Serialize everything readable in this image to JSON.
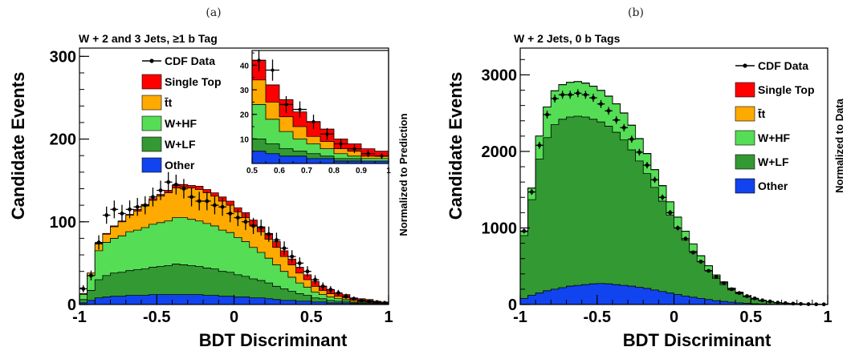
{
  "panels": {
    "a": {
      "letter": "(a)",
      "title": "W + 2 and 3 Jets, ≥1 b Tag",
      "side_label": "Normalized to Prediction"
    },
    "b": {
      "letter": "(b)",
      "title": "W + 2 Jets, 0 b Tags",
      "side_label": "Normalized to Data"
    }
  },
  "colors": {
    "single_top": "#ff0000",
    "ttbar": "#ffaa00",
    "whf": "#55dd55",
    "wlf": "#339933",
    "other": "#1144ee",
    "data": "#000000"
  },
  "chart_data": [
    {
      "type": "area",
      "title": "W + 2 and 3 Jets, ≥1 b Tag",
      "xlabel": "BDT Discriminant",
      "ylabel": "Candidate Events",
      "side_label": "Normalized to Prediction",
      "xlim": [
        -1,
        1
      ],
      "ylim": [
        0,
        310
      ],
      "x_ticks": [
        "-1",
        "-0.5",
        "0",
        "0.5",
        "1"
      ],
      "y_ticks": [
        "0",
        "100",
        "200",
        "300"
      ],
      "bins": 40,
      "stacked": true,
      "legend": [
        "CDF Data",
        "Single Top",
        "t̄t",
        "W+HF",
        "W+LF",
        "Other"
      ],
      "legend_position": "top",
      "series": [
        {
          "name": "Other",
          "values": [
            2,
            5,
            8,
            9,
            10,
            10,
            11,
            11,
            11,
            12,
            12,
            12,
            12,
            12,
            12,
            12,
            11,
            11,
            10,
            10,
            9,
            9,
            8,
            8,
            7,
            6,
            5,
            5,
            4,
            4,
            3,
            3,
            2,
            2,
            2,
            1,
            1,
            1,
            1,
            1
          ]
        },
        {
          "name": "W+LF",
          "values": [
            4,
            12,
            22,
            26,
            28,
            29,
            30,
            31,
            32,
            33,
            34,
            35,
            37,
            36,
            35,
            34,
            33,
            32,
            30,
            29,
            27,
            25,
            23,
            21,
            19,
            16,
            14,
            11,
            9,
            7,
            5,
            4,
            3,
            2,
            2,
            1,
            1,
            1,
            0,
            0
          ]
        },
        {
          "name": "W+HF",
          "values": [
            6,
            18,
            35,
            40,
            42,
            44,
            47,
            48,
            50,
            52,
            53,
            54,
            56,
            57,
            56,
            55,
            54,
            52,
            50,
            48,
            45,
            42,
            38,
            34,
            30,
            26,
            21,
            17,
            13,
            10,
            7,
            5,
            4,
            3,
            2,
            1,
            1,
            1,
            0,
            0
          ]
        },
        {
          "name": "t̄t",
          "values": [
            1,
            3,
            8,
            10,
            14,
            17,
            20,
            23,
            26,
            29,
            32,
            34,
            36,
            37,
            38,
            38,
            37,
            36,
            35,
            33,
            31,
            29,
            27,
            25,
            23,
            21,
            18,
            15,
            12,
            9,
            7,
            5,
            4,
            3,
            2,
            2,
            1,
            1,
            1,
            0
          ]
        },
        {
          "name": "Single Top",
          "values": [
            0,
            0,
            1,
            1,
            1,
            1,
            1,
            2,
            2,
            2,
            2,
            3,
            3,
            3,
            3,
            4,
            4,
            4,
            5,
            5,
            5,
            6,
            6,
            6,
            7,
            7,
            7,
            7,
            7,
            6,
            6,
            5,
            5,
            4,
            4,
            3,
            3,
            2,
            2,
            2
          ]
        }
      ],
      "data": {
        "name": "CDF Data",
        "values": [
          19,
          35,
          75,
          108,
          115,
          110,
          115,
          118,
          120,
          130,
          138,
          148,
          145,
          140,
          130,
          125,
          125,
          120,
          118,
          110,
          105,
          100,
          95,
          93,
          85,
          78,
          68,
          58,
          50,
          40,
          30,
          22,
          18,
          14,
          10,
          7,
          5,
          4,
          3,
          2
        ]
      },
      "inset": {
        "xlim": [
          0.5,
          1
        ],
        "ylim": [
          0,
          46
        ],
        "x_ticks": [
          "0.5",
          "0.6",
          "0.7",
          "0.8",
          "0.9",
          "1"
        ],
        "y_ticks": [
          "10",
          "20",
          "30",
          "40"
        ],
        "bins": 10,
        "series": [
          {
            "name": "Other",
            "values": [
              5,
              4,
              3,
              3,
              2,
              2,
              1,
              1,
              1,
              1
            ]
          },
          {
            "name": "W+LF",
            "values": [
              5,
              4,
              3,
              2,
              2,
              1,
              1,
              1,
              0,
              0
            ]
          },
          {
            "name": "W+HF",
            "values": [
              14,
              10,
              7,
              5,
              4,
              3,
              2,
              1,
              1,
              1
            ]
          },
          {
            "name": "t̄t",
            "values": [
              10,
              7,
              6,
              5,
              3,
              3,
              2,
              2,
              1,
              1
            ]
          },
          {
            "name": "Single Top",
            "values": [
              8,
              7,
              7,
              6,
              6,
              5,
              4,
              3,
              3,
              2
            ]
          }
        ],
        "data": {
          "values": [
            42,
            38,
            24,
            22,
            17,
            12,
            8,
            6,
            4,
            3
          ]
        }
      }
    },
    {
      "type": "area",
      "title": "W + 2 Jets, 0 b Tags",
      "xlabel": "BDT Discriminant",
      "ylabel": "Candidate Events",
      "side_label": "Normalized to Data",
      "xlim": [
        -1,
        1
      ],
      "ylim": [
        0,
        3350
      ],
      "x_ticks": [
        "-1",
        "-0.5",
        "0",
        "0.5",
        "1"
      ],
      "y_ticks": [
        "0",
        "1000",
        "2000",
        "3000"
      ],
      "bins": 40,
      "stacked": true,
      "legend": [
        "CDF Data",
        "Single Top",
        "t̄t",
        "W+HF",
        "W+LF",
        "Other"
      ],
      "legend_position": "right",
      "series": [
        {
          "name": "Other",
          "values": [
            80,
            120,
            150,
            180,
            200,
            220,
            240,
            250,
            260,
            270,
            275,
            270,
            260,
            250,
            240,
            225,
            210,
            190,
            170,
            150,
            130,
            110,
            95,
            80,
            65,
            50,
            40,
            30,
            22,
            15,
            10,
            7,
            5,
            3,
            2,
            1,
            1,
            0,
            0,
            0
          ]
        },
        {
          "name": "W+LF",
          "values": [
            820,
            1250,
            1750,
            2000,
            2150,
            2200,
            2210,
            2210,
            2190,
            2150,
            2110,
            2060,
            1990,
            1900,
            1780,
            1650,
            1500,
            1340,
            1180,
            1020,
            870,
            730,
            600,
            480,
            380,
            290,
            220,
            160,
            120,
            85,
            60,
            40,
            28,
            18,
            12,
            8,
            5,
            3,
            2,
            1
          ]
        },
        {
          "name": "W+HF",
          "values": [
            50,
            150,
            300,
            400,
            440,
            450,
            450,
            450,
            440,
            430,
            410,
            390,
            370,
            350,
            320,
            290,
            260,
            230,
            200,
            170,
            140,
            115,
            95,
            75,
            60,
            45,
            35,
            25,
            18,
            12,
            8,
            6,
            4,
            3,
            2,
            1,
            1,
            1,
            0,
            0
          ]
        },
        {
          "name": "t̄t",
          "values": [
            0,
            1,
            1,
            1,
            2,
            2,
            2,
            3,
            3,
            3,
            3,
            3,
            3,
            3,
            3,
            3,
            3,
            3,
            3,
            2,
            2,
            2,
            2,
            2,
            1,
            1,
            1,
            1,
            1,
            0,
            0,
            0,
            0,
            0,
            0,
            0,
            0,
            0,
            0,
            0
          ]
        },
        {
          "name": "Single Top",
          "values": [
            0,
            0,
            1,
            1,
            1,
            1,
            1,
            1,
            1,
            1,
            1,
            1,
            1,
            1,
            1,
            1,
            1,
            1,
            1,
            1,
            1,
            1,
            1,
            1,
            1,
            0,
            0,
            0,
            0,
            0,
            0,
            0,
            0,
            0,
            0,
            0,
            0,
            0,
            0,
            0
          ]
        }
      ],
      "data": {
        "name": "CDF Data",
        "values": [
          960,
          1470,
          2080,
          2480,
          2690,
          2740,
          2740,
          2760,
          2740,
          2700,
          2620,
          2530,
          2410,
          2310,
          2160,
          1990,
          1820,
          1630,
          1400,
          1200,
          1000,
          860,
          680,
          560,
          440,
          360,
          280,
          200,
          150,
          110,
          80,
          55,
          40,
          25,
          18,
          12,
          8,
          5,
          3,
          2
        ]
      }
    }
  ]
}
